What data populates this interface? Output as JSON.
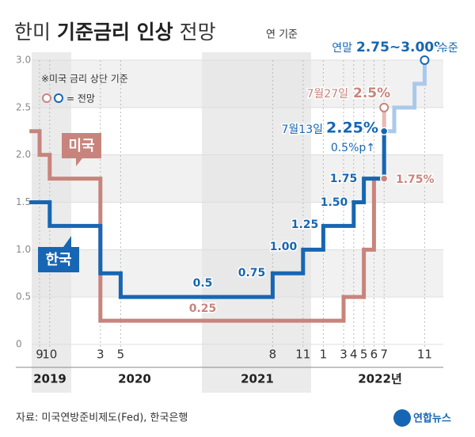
{
  "chart_data": {
    "type": "step",
    "title": {
      "prefix": "한미 ",
      "bold": "기준금리 인상",
      "suffix": " 전망"
    },
    "subtitle": "연 기준",
    "legend_note": "※미국 금리 상단 기준",
    "legend_forecast": "= 전망",
    "source": "자료: 미국연방준비제도(Fed), 한국은행",
    "logo": "연합뉴스",
    "ylim": [
      0,
      3.0
    ],
    "yticks": [
      0,
      {
        "value": 0.5,
        "label": "0.5"
      },
      {
        "value": 1.0,
        "label": "1.0"
      },
      {
        "value": 1.5,
        "label": "1.5"
      },
      {
        "value": 2.0,
        "label": "2.0"
      },
      {
        "value": 2.5,
        "label": "2.5"
      },
      {
        "value": 3.0,
        "label": "3.0"
      }
    ],
    "xticks": [
      {
        "value": "2019-09",
        "label": "9"
      },
      {
        "value": "2019-10",
        "label": "10"
      },
      {
        "value": "2020-03",
        "label": "3"
      },
      {
        "value": "2020-05",
        "label": "5"
      },
      {
        "value": "2021-08",
        "label": "8"
      },
      {
        "value": "2021-11",
        "label": "11"
      },
      {
        "value": "2022-01",
        "label": "1"
      },
      {
        "value": "2022-03",
        "label": "3"
      },
      {
        "value": "2022-04",
        "label": "4"
      },
      {
        "value": "2022-05",
        "label": "5"
      },
      {
        "value": "2022-06",
        "label": "6"
      },
      {
        "value": "2022-07",
        "label": "7"
      },
      {
        "value": "2022-11",
        "label": "11"
      }
    ],
    "years": [
      "2019",
      "2020",
      "2021",
      "2022년"
    ],
    "series": [
      {
        "name": "미국",
        "color": "#c8847c",
        "x": [
          "2019-08",
          "2019-09",
          "2019-10",
          "2020-03",
          "2022-03",
          "2022-05",
          "2022-06",
          "2022-07"
        ],
        "values": [
          2.25,
          2.0,
          1.75,
          0.25,
          0.5,
          1.0,
          1.75,
          1.75
        ]
      },
      {
        "name": "미국 전망",
        "color": "#e9b9b3",
        "forecast": true,
        "x": [
          "2022-07",
          "2022-07"
        ],
        "values": [
          1.75,
          2.5
        ]
      },
      {
        "name": "한국",
        "color": "#1766b3",
        "x": [
          "2019-08",
          "2019-10",
          "2020-03",
          "2020-05",
          "2021-08",
          "2021-11",
          "2022-01",
          "2022-04",
          "2022-05",
          "2022-07"
        ],
        "values": [
          1.5,
          1.25,
          0.75,
          0.5,
          0.75,
          1.0,
          1.25,
          1.5,
          1.75,
          2.25
        ]
      },
      {
        "name": "한국 전망",
        "color": "#a9c9ec",
        "forecast": true,
        "x": [
          "2022-07",
          "2022-08",
          "2022-10",
          "2022-11"
        ],
        "values": [
          2.25,
          2.5,
          2.75,
          3.0
        ]
      }
    ],
    "annotations": [
      "0.5",
      "0.75",
      "1.00",
      "1.25",
      "1.50",
      "1.75",
      "0.25",
      "1.75%",
      "7월13일",
      "2.25%",
      "0.5%p↑",
      "7월27일",
      "2.5%",
      "연말",
      "2.75~3.00%",
      "수준"
    ]
  }
}
